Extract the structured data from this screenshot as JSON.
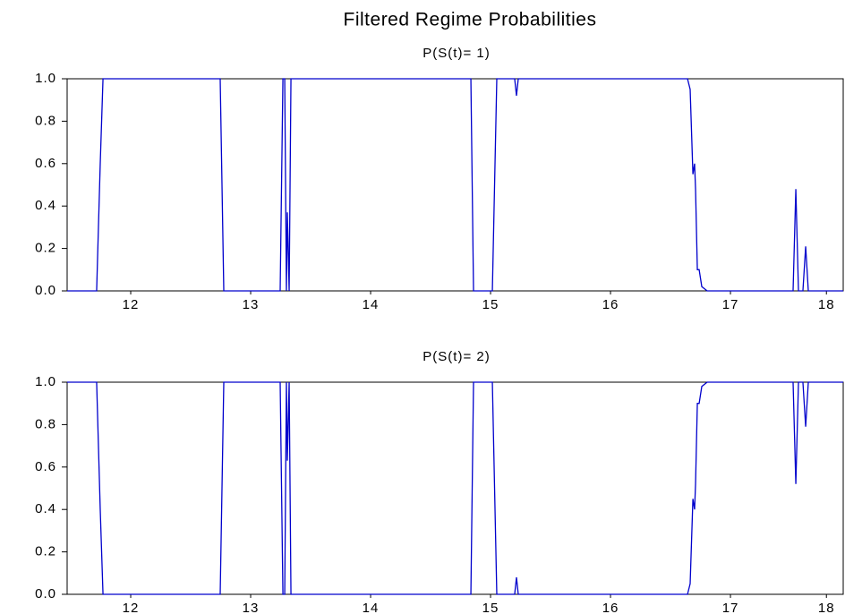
{
  "title": "Filtered Regime Probabilities",
  "chart_data": [
    {
      "type": "line",
      "title": "P(S(t)= 1)",
      "x": [
        11.97,
        12.216,
        12.246,
        12.269,
        13.246,
        13.276,
        13.746,
        13.769,
        13.784,
        13.798,
        13.806,
        13.821,
        13.836,
        15.336,
        15.358,
        15.515,
        15.552,
        15.701,
        15.716,
        15.731,
        17.142,
        17.164,
        17.187,
        17.201,
        17.209,
        17.224,
        17.239,
        17.261,
        17.306,
        18.022,
        18.045,
        18.067,
        18.104,
        18.127,
        18.149,
        18.44
      ],
      "series": [
        {
          "color": "#0000cc",
          "values": [
            0,
            0,
            0.6,
            1,
            1,
            0,
            0,
            1,
            1,
            0,
            0.37,
            0,
            1,
            1,
            0,
            0,
            1,
            1,
            0.92,
            1,
            1,
            0.95,
            0.55,
            0.6,
            0.48,
            0.1,
            0.1,
            0.02,
            0,
            0,
            0.48,
            0,
            0,
            0.21,
            0,
            0
          ]
        }
      ],
      "xlim": [
        11.97,
        18.44
      ],
      "xticks": [
        {
          "value": 12.5,
          "label": "12"
        },
        {
          "value": 13.5,
          "label": "13"
        },
        {
          "value": 14.5,
          "label": "14"
        },
        {
          "value": 15.5,
          "label": "15"
        },
        {
          "value": 16.5,
          "label": "16"
        },
        {
          "value": 17.5,
          "label": "17"
        },
        {
          "value": 18.3,
          "label": "18"
        }
      ],
      "ylim": [
        0,
        1
      ],
      "yticks": [
        {
          "value": 0,
          "label": "0.0"
        },
        0.2,
        0.4,
        0.6,
        0.8,
        {
          "value": 1,
          "label": "1.0"
        }
      ]
    },
    {
      "type": "line",
      "title": "P(S(t)= 2)",
      "x": [
        11.97,
        12.216,
        12.246,
        12.269,
        13.246,
        13.276,
        13.746,
        13.769,
        13.784,
        13.798,
        13.806,
        13.821,
        13.836,
        15.336,
        15.358,
        15.515,
        15.552,
        15.701,
        15.716,
        15.731,
        17.142,
        17.164,
        17.187,
        17.201,
        17.209,
        17.224,
        17.239,
        17.261,
        17.306,
        18.022,
        18.045,
        18.067,
        18.104,
        18.127,
        18.149,
        18.44
      ],
      "series": [
        {
          "color": "#0000cc",
          "values": [
            1,
            1,
            0.4,
            0,
            0,
            1,
            1,
            0,
            0,
            1,
            0.63,
            1,
            0,
            0,
            1,
            1,
            0,
            0,
            0.08,
            0,
            0,
            0.05,
            0.45,
            0.4,
            0.52,
            0.9,
            0.9,
            0.98,
            1,
            1,
            0.52,
            1,
            1,
            0.79,
            1,
            1
          ]
        }
      ],
      "xlim": [
        11.97,
        18.44
      ],
      "xticks": [
        {
          "value": 12.5,
          "label": "12"
        },
        {
          "value": 13.5,
          "label": "13"
        },
        {
          "value": 14.5,
          "label": "14"
        },
        {
          "value": 15.5,
          "label": "15"
        },
        {
          "value": 16.5,
          "label": "16"
        },
        {
          "value": 17.5,
          "label": "17"
        },
        {
          "value": 18.3,
          "label": "18"
        }
      ],
      "ylim": [
        0,
        1
      ],
      "yticks": [
        {
          "value": 0,
          "label": "0.0"
        },
        0.2,
        0.4,
        0.6,
        0.8,
        {
          "value": 1,
          "label": "1.0"
        }
      ]
    }
  ]
}
